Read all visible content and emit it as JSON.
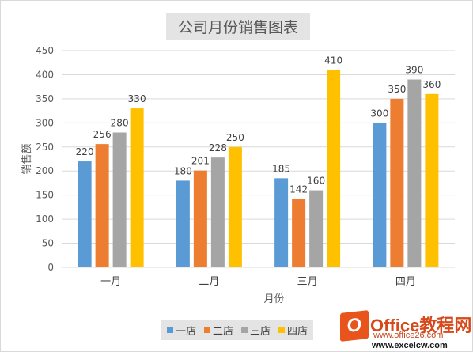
{
  "chart_data": {
    "type": "bar",
    "title": "公司月份销售图表",
    "xlabel": "月份",
    "ylabel": "销售额",
    "categories": [
      "一月",
      "二月",
      "三月",
      "四月"
    ],
    "ylim": [
      0,
      450
    ],
    "yticks": [
      0,
      50,
      100,
      150,
      200,
      250,
      300,
      350,
      400,
      450
    ],
    "grid": true,
    "legend_position": "bottom",
    "series": [
      {
        "name": "一店",
        "color": "#5b9bd5",
        "values": [
          220,
          180,
          185,
          300
        ]
      },
      {
        "name": "二店",
        "color": "#ed7d31",
        "values": [
          256,
          201,
          142,
          350
        ]
      },
      {
        "name": "三店",
        "color": "#a5a5a5",
        "values": [
          280,
          228,
          160,
          390
        ]
      },
      {
        "name": "四店",
        "color": "#ffc000",
        "values": [
          330,
          250,
          410,
          360
        ]
      }
    ]
  },
  "watermark": {
    "brand": "Office教程网",
    "url1": "www.office26.com",
    "url2": "www.excelcw.com"
  }
}
